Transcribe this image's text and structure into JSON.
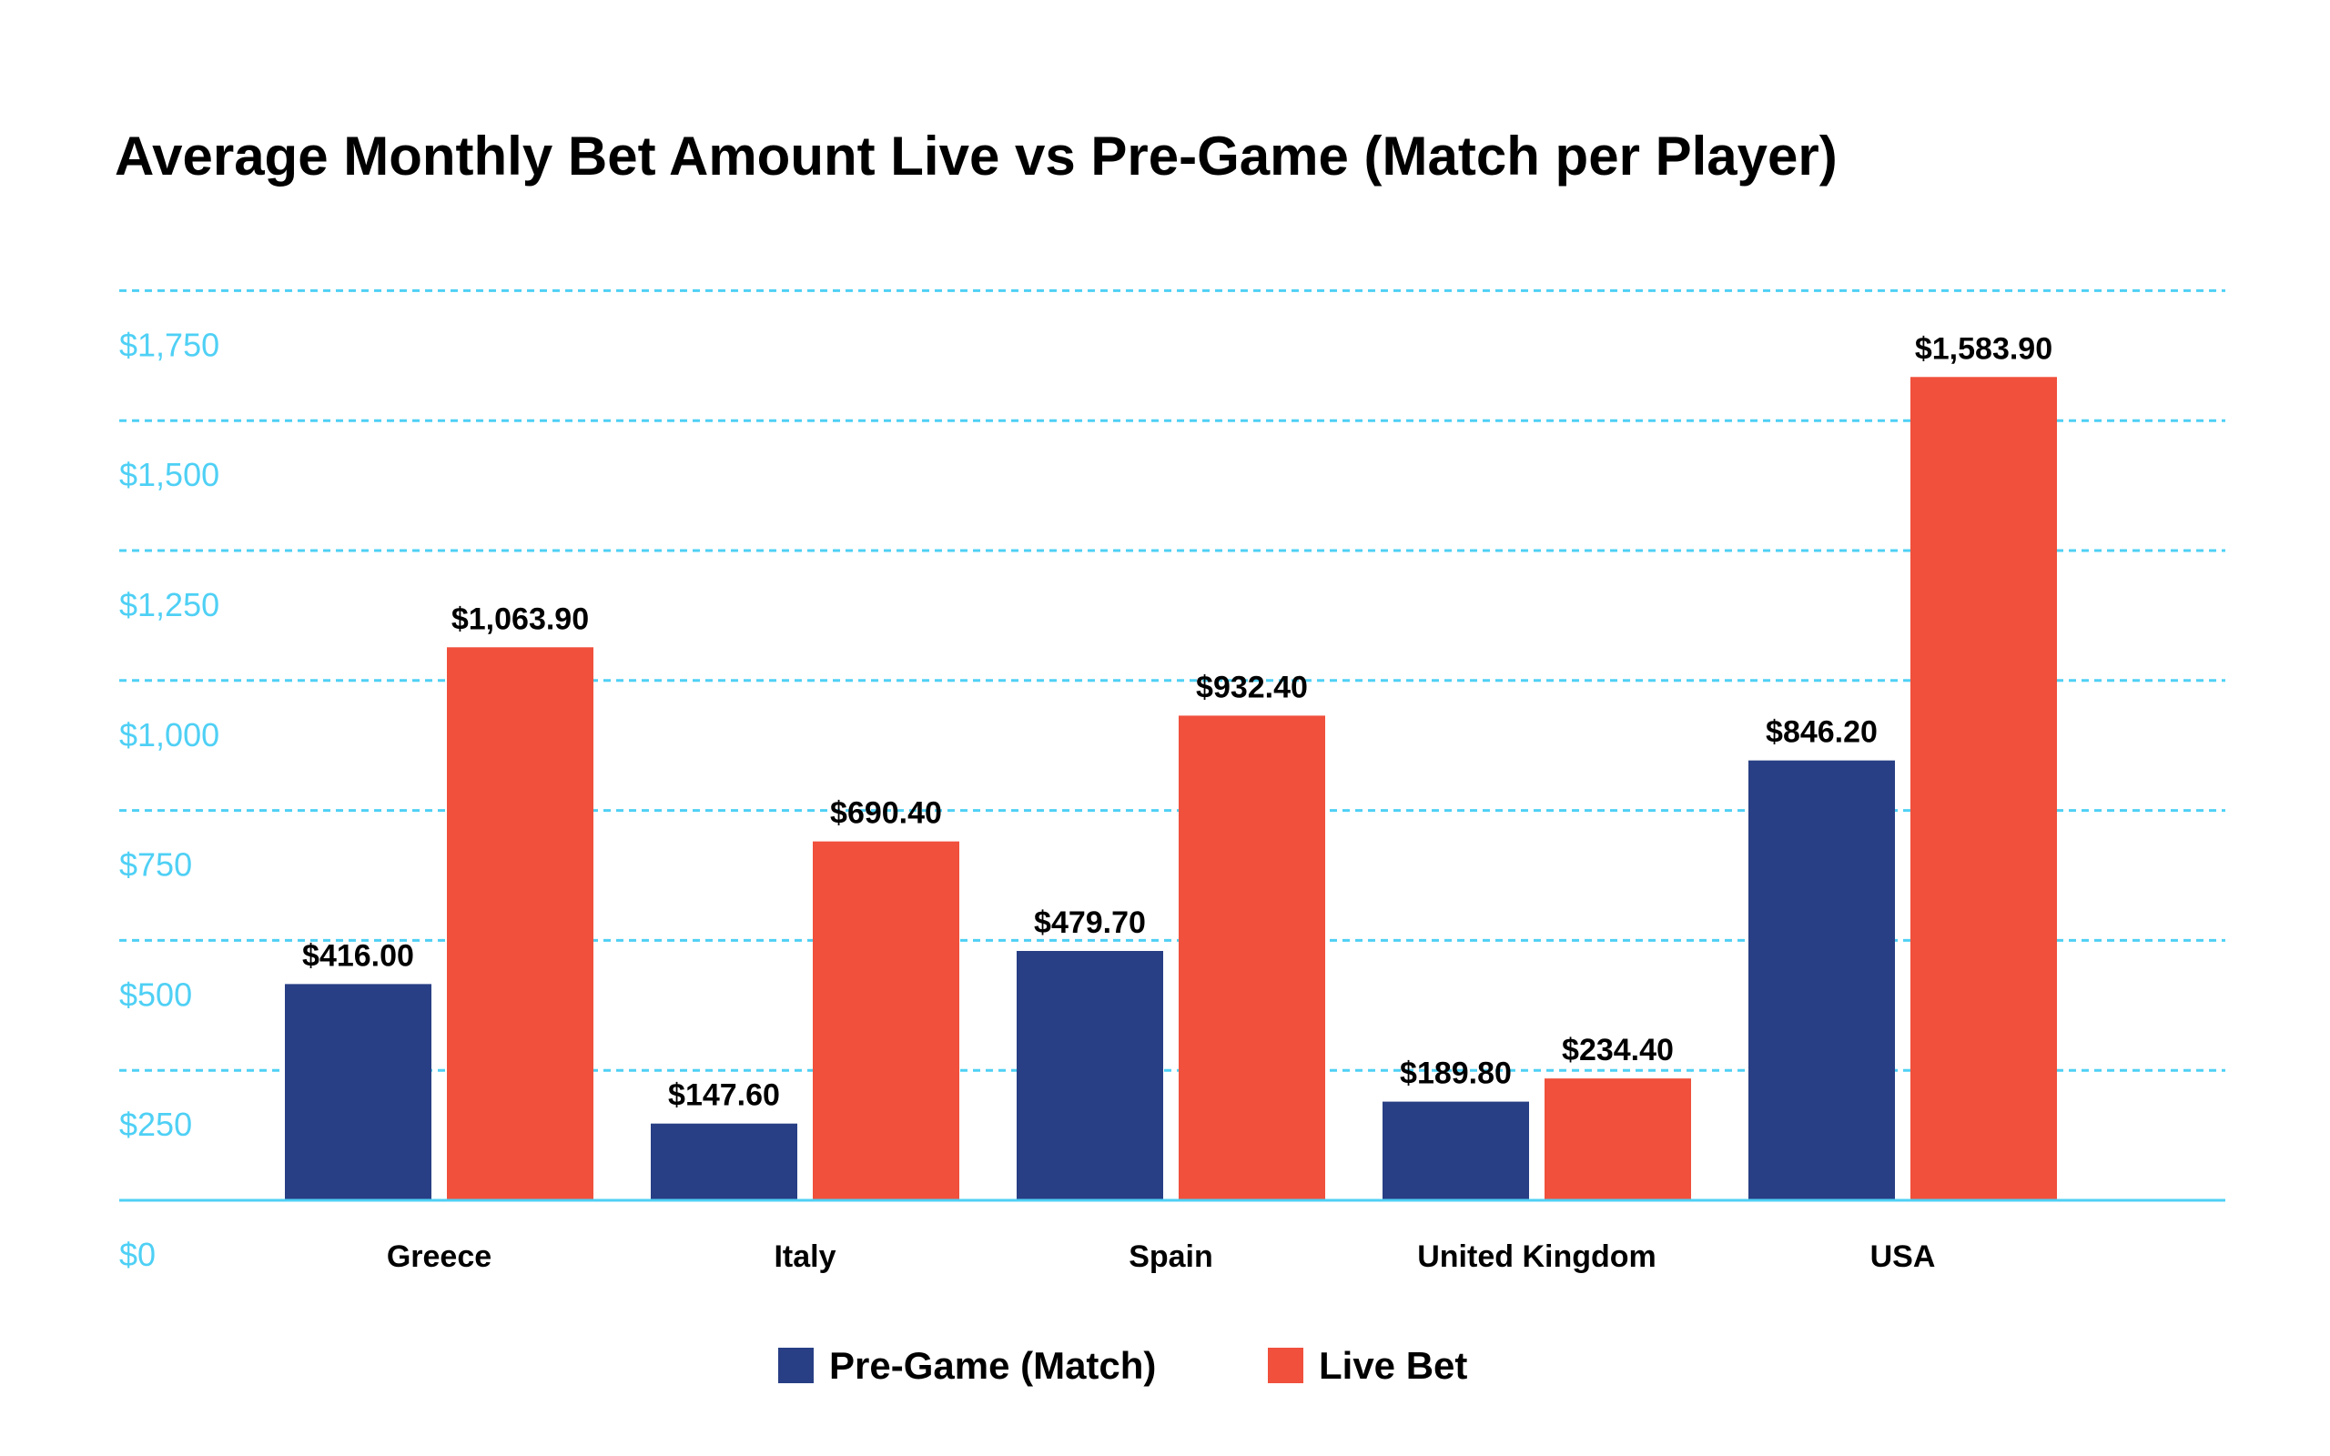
{
  "chart_data": {
    "type": "bar",
    "title": "Average Monthly Bet Amount Live vs Pre-Game (Match per Player)",
    "xlabel": "",
    "ylabel": "",
    "categories": [
      "Greece",
      "Italy",
      "Spain",
      "United Kingdom",
      "USA"
    ],
    "series": [
      {
        "name": "Pre-Game (Match)",
        "color": "#283f85",
        "values": [
          416.0,
          147.6,
          479.7,
          189.8,
          846.2
        ],
        "labels": [
          "$416.00",
          "$147.60",
          "$479.70",
          "$189.80",
          "$846.20"
        ]
      },
      {
        "name": "Live Bet",
        "color": "#f0503c",
        "values": [
          1063.9,
          690.4,
          932.4,
          234.4,
          1583.9
        ],
        "labels": [
          "$1,063.90",
          "$690.40",
          "$932.40",
          "$234.40",
          "$1,583.90"
        ]
      }
    ],
    "yticks": [
      0,
      250,
      500,
      750,
      1000,
      1250,
      1500,
      1750
    ],
    "ytick_labels": [
      "$0",
      "$250",
      "$500",
      "$750",
      "$1,000",
      "$1,250",
      "$1,500",
      "$1,750"
    ],
    "ylim": [
      0,
      1750
    ],
    "grid": true,
    "grid_color": "#4fd0f5",
    "legend": "bottom-center"
  }
}
